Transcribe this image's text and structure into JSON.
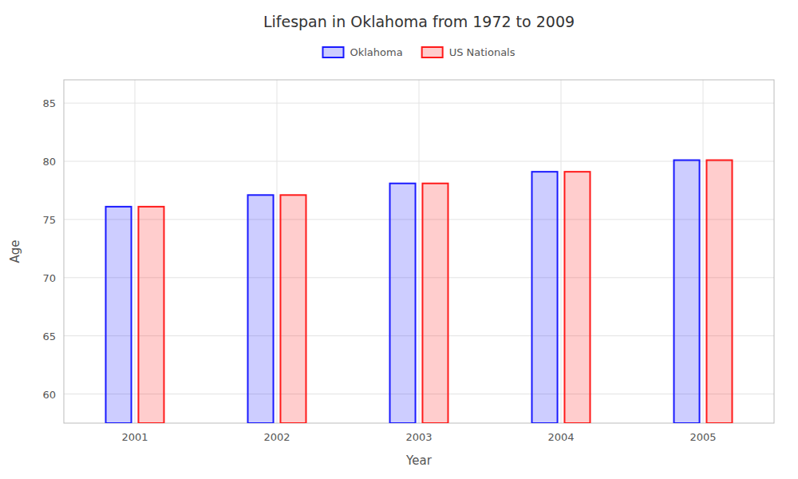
{
  "chart_data": {
    "type": "bar",
    "title": "Lifespan in Oklahoma from 1972 to 2009",
    "x_label": "Year",
    "y_label": "Age",
    "categories": [
      "2001",
      "2002",
      "2003",
      "2004",
      "2005"
    ],
    "series": [
      {
        "name": "Oklahoma",
        "color": "#1a1aff",
        "values": [
          76.1,
          77.1,
          78.1,
          79.1,
          80.1
        ]
      },
      {
        "name": "US Nationals",
        "color": "#ff1a1a",
        "values": [
          76.1,
          77.1,
          78.1,
          79.1,
          80.1
        ]
      }
    ],
    "ylim": [
      57.5,
      87
    ],
    "yticks": [
      60,
      65,
      70,
      75,
      80,
      85
    ],
    "grid": true,
    "legend": "top"
  }
}
